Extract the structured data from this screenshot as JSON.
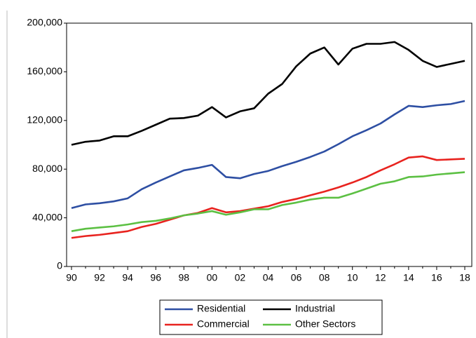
{
  "chart_data": {
    "type": "line",
    "categories": [
      "90",
      null,
      "92",
      null,
      "94",
      null,
      "96",
      null,
      "98",
      null,
      "00",
      null,
      "02",
      null,
      "04",
      null,
      "06",
      null,
      "08",
      null,
      "10",
      null,
      "12",
      null,
      "14",
      null,
      "16",
      null,
      "18"
    ],
    "series": [
      {
        "name": "Residential",
        "color": "#2e4fa3",
        "values": [
          48000,
          51000,
          52000,
          53500,
          56000,
          63500,
          69000,
          74000,
          79000,
          81000,
          83500,
          73500,
          72500,
          76000,
          78500,
          82500,
          86000,
          90000,
          94500,
          100500,
          107000,
          112000,
          117500,
          125000,
          132000,
          131000,
          132500,
          133500,
          136000
        ]
      },
      {
        "name": "Industrial",
        "color": "#000000",
        "values": [
          100000,
          102500,
          103500,
          107000,
          107000,
          111500,
          116500,
          121500,
          122000,
          124000,
          131000,
          122500,
          127500,
          130000,
          142000,
          150000,
          164500,
          175000,
          180000,
          166000,
          179000,
          183000,
          183000,
          184500,
          178000,
          169000,
          164000,
          166500,
          169000
        ]
      },
      {
        "name": "Commercial",
        "color": "#e8231f",
        "values": [
          23500,
          25000,
          26000,
          27500,
          29000,
          32500,
          35000,
          38500,
          42000,
          44000,
          48000,
          44500,
          45500,
          47500,
          49500,
          53000,
          55500,
          58500,
          61500,
          65000,
          69000,
          73500,
          79000,
          84000,
          89500,
          90500,
          87500,
          88000,
          88500
        ]
      },
      {
        "name": "Other Sectors",
        "color": "#5cc043",
        "values": [
          29000,
          31000,
          32000,
          33000,
          34500,
          36500,
          37500,
          39500,
          42000,
          43500,
          45500,
          42500,
          44500,
          47000,
          47000,
          50500,
          52500,
          55000,
          56500,
          56500,
          60000,
          64000,
          68000,
          70000,
          73500,
          74000,
          75500,
          76500,
          77500
        ]
      }
    ],
    "ylim": [
      0,
      200000
    ],
    "yticks": [
      0,
      {
        "value": 40000,
        "label": "40,000"
      },
      {
        "value": 80000,
        "label": "80,000"
      },
      {
        "value": 120000,
        "label": "120,000"
      },
      {
        "value": 160000,
        "label": "160,000"
      },
      {
        "value": 200000,
        "label": "200,000"
      }
    ],
    "grid": false
  }
}
